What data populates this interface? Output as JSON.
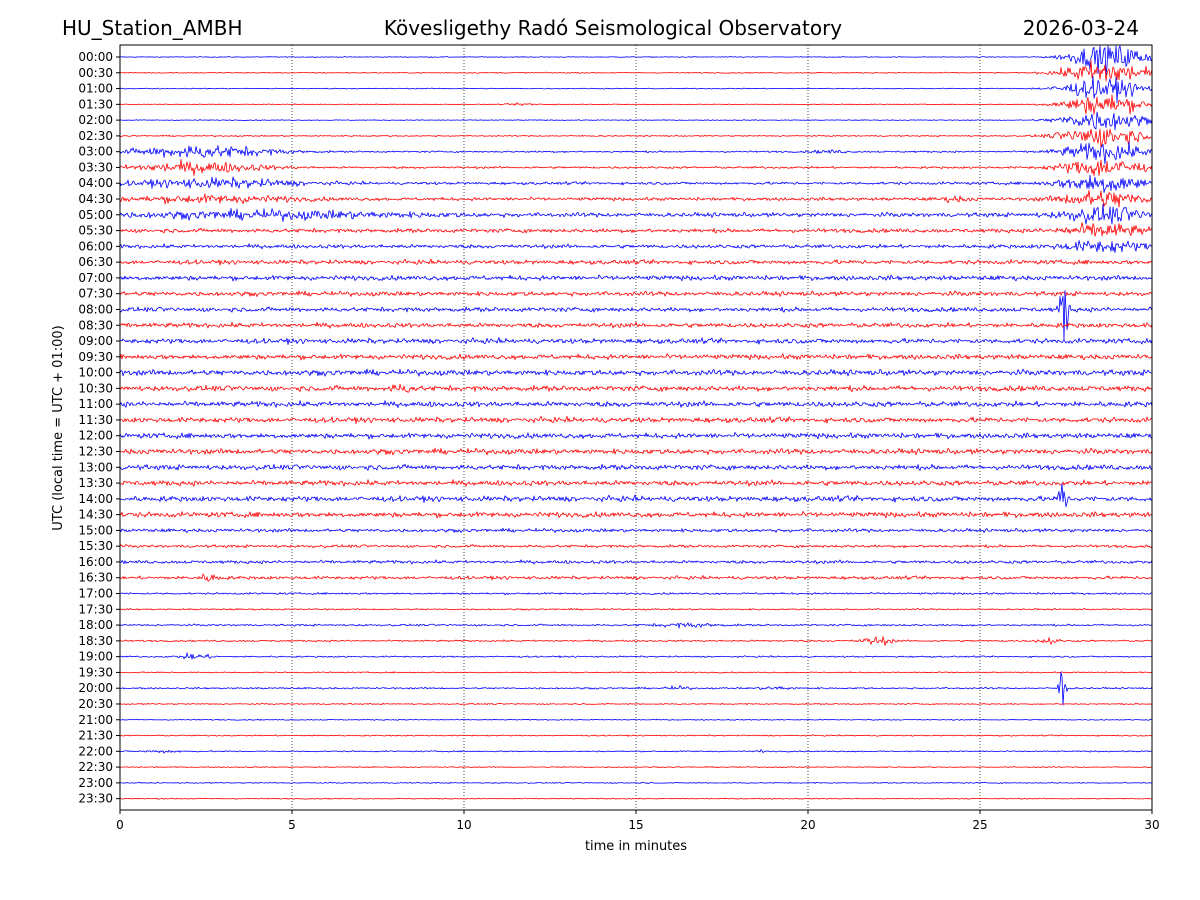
{
  "chart_data": {
    "type": "line",
    "chart_kind": "helicorder",
    "title_left": "HU_Station_AMBH",
    "title_center": "Kövesligethy Radó Seismological Observatory",
    "title_right": "2026-03-24",
    "xlabel": "time in minutes",
    "ylabel": "UTC (local time = UTC + 01:00)",
    "xlim": [
      0,
      30
    ],
    "x_ticks": [
      "0",
      "5",
      "10",
      "15",
      "20",
      "25",
      "30"
    ],
    "x_tick_values": [
      0,
      5,
      10,
      15,
      20,
      25,
      30
    ],
    "row_labels": [
      "00:00",
      "00:30",
      "01:00",
      "01:30",
      "02:00",
      "02:30",
      "03:00",
      "03:30",
      "04:00",
      "04:30",
      "05:00",
      "05:30",
      "06:00",
      "06:30",
      "07:00",
      "07:30",
      "08:00",
      "08:30",
      "09:00",
      "09:30",
      "10:00",
      "10:30",
      "11:00",
      "11:30",
      "12:00",
      "12:30",
      "13:00",
      "13:30",
      "14:00",
      "14:30",
      "15:00",
      "15:30",
      "16:00",
      "16:30",
      "17:00",
      "17:30",
      "18:00",
      "18:30",
      "19:00",
      "19:30",
      "20:00",
      "20:30",
      "21:00",
      "21:30",
      "22:00",
      "22:30",
      "23:00",
      "23:30"
    ],
    "series_colors": [
      "#0000ff",
      "#ff0000"
    ],
    "grid": "vertical dotted",
    "noise_level": [
      0.4,
      0.5,
      0.45,
      0.35,
      0.4,
      0.6,
      0.8,
      1.0,
      1.3,
      1.5,
      2.0,
      1.9,
      1.8,
      2.0,
      2.2,
      2.1,
      2.1,
      2.2,
      2.3,
      2.3,
      2.6,
      2.5,
      2.5,
      2.4,
      2.4,
      2.5,
      2.4,
      2.4,
      2.5,
      2.4,
      1.6,
      1.3,
      1.5,
      1.5,
      0.9,
      0.7,
      0.9,
      0.8,
      0.7,
      0.6,
      0.8,
      0.6,
      0.5,
      0.6,
      0.6,
      0.5,
      0.5,
      0.5
    ],
    "events": [
      {
        "row": 0,
        "minute": 27.5,
        "duration": 2.5,
        "amplitude": 14
      },
      {
        "row": 1,
        "minute": 27.3,
        "duration": 2.7,
        "amplitude": 12
      },
      {
        "row": 2,
        "minute": 27.2,
        "duration": 2.8,
        "amplitude": 10
      },
      {
        "row": 3,
        "minute": 27.2,
        "duration": 2.8,
        "amplitude": 10
      },
      {
        "row": 4,
        "minute": 27.2,
        "duration": 2.8,
        "amplitude": 10
      },
      {
        "row": 5,
        "minute": 27.2,
        "duration": 2.8,
        "amplitude": 10
      },
      {
        "row": 6,
        "minute": 27.2,
        "duration": 2.8,
        "amplitude": 9
      },
      {
        "row": 7,
        "minute": 27.2,
        "duration": 2.8,
        "amplitude": 9
      },
      {
        "row": 8,
        "minute": 27.2,
        "duration": 2.8,
        "amplitude": 9
      },
      {
        "row": 9,
        "minute": 27.2,
        "duration": 2.8,
        "amplitude": 8
      },
      {
        "row": 10,
        "minute": 27.2,
        "duration": 2.8,
        "amplitude": 7
      },
      {
        "row": 11,
        "minute": 27.2,
        "duration": 2.8,
        "amplitude": 6
      },
      {
        "row": 12,
        "minute": 27.2,
        "duration": 2.8,
        "amplitude": 5
      },
      {
        "row": 6,
        "minute": 0.0,
        "duration": 4.8,
        "amplitude": 6
      },
      {
        "row": 7,
        "minute": 0.0,
        "duration": 4.5,
        "amplitude": 5
      },
      {
        "row": 8,
        "minute": 0.0,
        "duration": 5.5,
        "amplitude": 4
      },
      {
        "row": 9,
        "minute": 0.0,
        "duration": 5.5,
        "amplitude": 3
      },
      {
        "row": 10,
        "minute": 0.0,
        "duration": 9.0,
        "amplitude": 3
      },
      {
        "row": 3,
        "minute": 11.2,
        "duration": 1.2,
        "amplitude": 1.2
      },
      {
        "row": 6,
        "minute": 20.0,
        "duration": 1.2,
        "amplitude": 1.3
      },
      {
        "row": 9,
        "minute": 23.8,
        "duration": 1.0,
        "amplitude": 1.8
      },
      {
        "row": 21,
        "minute": 7.8,
        "duration": 0.8,
        "amplitude": 3
      },
      {
        "row": 33,
        "minute": 2.2,
        "duration": 0.8,
        "amplitude": 3
      },
      {
        "row": 36,
        "minute": 15.5,
        "duration": 2.0,
        "amplitude": 1.8
      },
      {
        "row": 37,
        "minute": 21.5,
        "duration": 1.0,
        "amplitude": 4
      },
      {
        "row": 37,
        "minute": 26.7,
        "duration": 0.6,
        "amplitude": 3.5
      },
      {
        "row": 38,
        "minute": 1.7,
        "duration": 1.0,
        "amplitude": 3
      },
      {
        "row": 40,
        "minute": 15.8,
        "duration": 0.8,
        "amplitude": 1.5
      },
      {
        "row": 40,
        "minute": 18.6,
        "duration": 1.0,
        "amplitude": 1.5
      },
      {
        "row": 44,
        "minute": 0.6,
        "duration": 1.4,
        "amplitude": 1.2
      },
      {
        "row": 44,
        "minute": 18.5,
        "duration": 0.2,
        "amplitude": 1.5
      },
      {
        "row": 16,
        "minute": 27.3,
        "duration": 0.3,
        "amplitude": 30
      },
      {
        "row": 28,
        "minute": 27.3,
        "duration": 0.2,
        "amplitude": 40
      },
      {
        "row": 40,
        "minute": 27.3,
        "duration": 0.2,
        "amplitude": 40
      }
    ]
  }
}
